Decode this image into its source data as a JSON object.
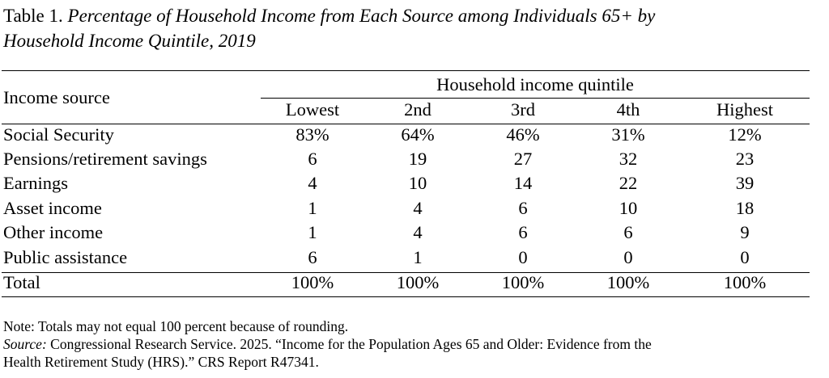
{
  "title": {
    "prefix": "Table 1. ",
    "italic_line1": "Percentage of Household Income from Each Source among Individuals 65+ by",
    "italic_line2": "Household Income Quintile, 2019"
  },
  "table": {
    "row_header_label": "Income source",
    "group_header": "Household income quintile",
    "columns": [
      "Lowest",
      "2nd",
      "3rd",
      "4th",
      "Highest"
    ],
    "rows": [
      {
        "label": "Social Security",
        "values": [
          "83%",
          "64%",
          "46%",
          "31%",
          "12%"
        ]
      },
      {
        "label": "Pensions/retirement savings",
        "values": [
          "6",
          "19",
          "27",
          "32",
          "23"
        ]
      },
      {
        "label": "Earnings",
        "values": [
          "4",
          "10",
          "14",
          "22",
          "39"
        ]
      },
      {
        "label": "Asset income",
        "values": [
          "1",
          "4",
          "6",
          "10",
          "18"
        ]
      },
      {
        "label": "Other income",
        "values": [
          "1",
          "4",
          "6",
          "6",
          "9"
        ]
      },
      {
        "label": "Public assistance",
        "values": [
          "6",
          "1",
          "0",
          "0",
          "0"
        ]
      }
    ],
    "total": {
      "label": "Total",
      "values": [
        "100%",
        "100%",
        "100%",
        "100%",
        "100%"
      ]
    }
  },
  "notes": {
    "note": "Note: Totals may not equal 100 percent because of rounding.",
    "source_label": "Source:",
    "source_text_line1": " Congressional Research Service. 2025. “Income for the Population Ages 65 and Older: Evidence from the",
    "source_text_line2": "Health Retirement Study (HRS).” CRS Report R47341."
  }
}
